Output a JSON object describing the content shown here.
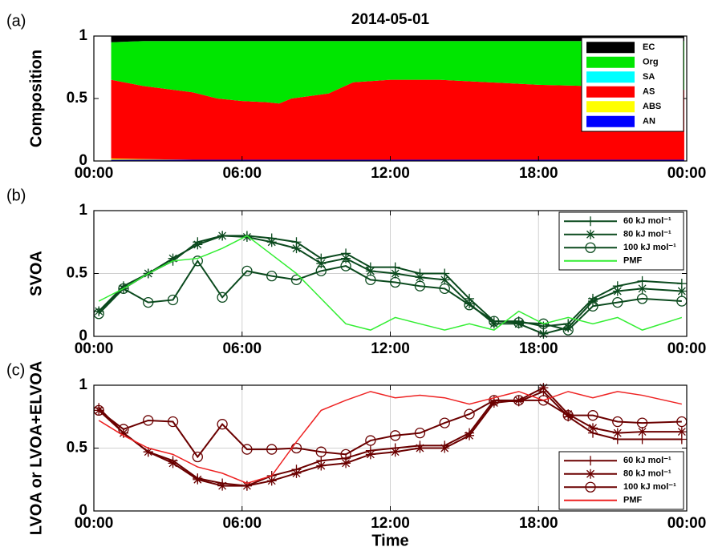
{
  "chart_data": [
    {
      "type": "area",
      "panel_label": "(a)",
      "title": "2014-05-01",
      "ylabel": "Composition",
      "x": [
        0.7,
        2,
        4,
        5,
        6,
        7,
        7.5,
        8,
        9.5,
        10.5,
        12,
        14,
        16,
        18,
        20,
        22,
        23.9
      ],
      "series": [
        {
          "name": "EC",
          "color": "#000000",
          "values": [
            0.05,
            0.04,
            0.04,
            0.04,
            0.04,
            0.04,
            0.04,
            0.04,
            0.04,
            0.04,
            0.04,
            0.04,
            0.04,
            0.04,
            0.04,
            0.04,
            0.04
          ]
        },
        {
          "name": "Org",
          "color": "#00e600",
          "values": [
            0.3,
            0.36,
            0.41,
            0.46,
            0.48,
            0.49,
            0.5,
            0.46,
            0.42,
            0.33,
            0.31,
            0.31,
            0.33,
            0.35,
            0.36,
            0.37,
            0.39
          ]
        },
        {
          "name": "SA",
          "color": "#00ffff",
          "values": [
            0,
            0,
            0,
            0,
            0,
            0,
            0,
            0,
            0,
            0,
            0,
            0,
            0,
            0,
            0,
            0,
            0
          ]
        },
        {
          "name": "AS",
          "color": "#ff0000",
          "values": [
            0.63,
            0.585,
            0.54,
            0.49,
            0.47,
            0.46,
            0.45,
            0.49,
            0.53,
            0.62,
            0.64,
            0.64,
            0.62,
            0.6,
            0.59,
            0.58,
            0.56
          ]
        },
        {
          "name": "ABS",
          "color": "#ffff00",
          "values": [
            0.01,
            0.005,
            0,
            0,
            0,
            0,
            0,
            0,
            0,
            0,
            0,
            0,
            0,
            0,
            0,
            0,
            0
          ]
        },
        {
          "name": "AN",
          "color": "#0000ff",
          "values": [
            0.01,
            0.01,
            0.01,
            0.01,
            0.01,
            0.01,
            0.01,
            0.01,
            0.01,
            0.01,
            0.01,
            0.01,
            0.01,
            0.01,
            0.01,
            0.01,
            0.01
          ]
        }
      ],
      "xlim": [
        0,
        24
      ],
      "xticks": [
        {
          "value": 0,
          "label": "00:00"
        },
        {
          "value": 6,
          "label": "06:00"
        },
        {
          "value": 12,
          "label": "12:00"
        },
        {
          "value": 18,
          "label": "18:00"
        },
        {
          "value": 24,
          "label": "00:00"
        }
      ],
      "ylim": [
        0,
        1
      ],
      "yticks": [
        0,
        0.5,
        1
      ],
      "grid": false,
      "legend": "upper right"
    },
    {
      "type": "line",
      "panel_label": "(b)",
      "ylabel": "SVOA",
      "x": [
        0.2,
        1.2,
        2.2,
        3.2,
        4.2,
        5.2,
        6.2,
        7.2,
        8.2,
        9.2,
        10.2,
        11.2,
        12.2,
        13.2,
        14.2,
        15.2,
        16.2,
        17.2,
        18.2,
        19.2,
        20.2,
        21.2,
        22.2,
        23.8
      ],
      "series": [
        {
          "name": "60 kJ mol⁻¹",
          "color": "#0b4a1e",
          "marker": "+",
          "values": [
            0.2,
            0.4,
            0.5,
            0.6,
            0.75,
            0.8,
            0.8,
            0.78,
            0.75,
            0.62,
            0.66,
            0.55,
            0.55,
            0.5,
            0.5,
            0.3,
            0.12,
            0.12,
            0.08,
            0.1,
            0.3,
            0.4,
            0.44,
            0.42
          ]
        },
        {
          "name": "80 kJ mol⁻¹",
          "color": "#0b4a1e",
          "marker": "*",
          "values": [
            0.2,
            0.38,
            0.5,
            0.62,
            0.73,
            0.8,
            0.79,
            0.75,
            0.7,
            0.58,
            0.62,
            0.52,
            0.5,
            0.47,
            0.45,
            0.26,
            0.1,
            0.1,
            0.02,
            0.07,
            0.28,
            0.36,
            0.38,
            0.36
          ]
        },
        {
          "name": "100 kJ mol⁻¹",
          "color": "#0b4a1e",
          "marker": "o",
          "values": [
            0.18,
            0.38,
            0.27,
            0.29,
            0.6,
            0.31,
            0.52,
            0.48,
            0.45,
            0.52,
            0.56,
            0.45,
            0.43,
            0.4,
            0.38,
            0.25,
            0.12,
            0.11,
            0.1,
            0.05,
            0.24,
            0.27,
            0.3,
            0.28
          ]
        },
        {
          "name": "PMF",
          "color": "#33ee33",
          "marker": "none",
          "values": [
            0.28,
            0.38,
            0.5,
            0.6,
            0.62,
            0.7,
            0.8,
            0.65,
            0.5,
            0.3,
            0.1,
            0.05,
            0.15,
            0.1,
            0.05,
            0.1,
            0.05,
            0.2,
            0.1,
            0.15,
            0.1,
            0.15,
            0.05,
            0.15
          ]
        }
      ],
      "xlim": [
        0,
        24
      ],
      "xticks": [
        {
          "value": 0,
          "label": "00:00"
        },
        {
          "value": 6,
          "label": "06:00"
        },
        {
          "value": 12,
          "label": "12:00"
        },
        {
          "value": 18,
          "label": "18:00"
        },
        {
          "value": 24,
          "label": "00:00"
        }
      ],
      "ylim": [
        0,
        1
      ],
      "yticks": [
        0,
        0.5,
        1
      ],
      "grid": true,
      "legend": "upper right"
    },
    {
      "type": "line",
      "panel_label": "(c)",
      "ylabel": "LVOA or LVOA+ELVOA",
      "xlabel": "Time",
      "x": [
        0.2,
        1.2,
        2.2,
        3.2,
        4.2,
        5.2,
        6.2,
        7.2,
        8.2,
        9.2,
        10.2,
        11.2,
        12.2,
        13.2,
        14.2,
        15.2,
        16.2,
        17.2,
        18.2,
        19.2,
        20.2,
        21.2,
        22.2,
        23.8
      ],
      "series": [
        {
          "name": "60 kJ mol⁻¹",
          "color": "#6b0000",
          "marker": "+",
          "values": [
            0.82,
            0.62,
            0.47,
            0.4,
            0.26,
            0.22,
            0.2,
            0.28,
            0.33,
            0.4,
            0.42,
            0.48,
            0.5,
            0.52,
            0.52,
            0.62,
            0.88,
            0.87,
            0.95,
            0.75,
            0.62,
            0.57,
            0.57,
            0.57
          ]
        },
        {
          "name": "80 kJ mol⁻¹",
          "color": "#6b0000",
          "marker": "*",
          "values": [
            0.8,
            0.62,
            0.47,
            0.38,
            0.25,
            0.2,
            0.2,
            0.24,
            0.3,
            0.36,
            0.38,
            0.45,
            0.47,
            0.5,
            0.5,
            0.6,
            0.86,
            0.88,
            0.98,
            0.77,
            0.66,
            0.62,
            0.63,
            0.63
          ]
        },
        {
          "name": "100 kJ mol⁻¹",
          "color": "#6b0000",
          "marker": "o",
          "values": [
            0.8,
            0.65,
            0.72,
            0.71,
            0.43,
            0.69,
            0.49,
            0.49,
            0.5,
            0.47,
            0.45,
            0.56,
            0.6,
            0.62,
            0.7,
            0.77,
            0.88,
            0.88,
            0.88,
            0.76,
            0.76,
            0.71,
            0.7,
            0.71
          ]
        },
        {
          "name": "PMF",
          "color": "#ee2222",
          "marker": "none",
          "values": [
            0.72,
            0.6,
            0.5,
            0.45,
            0.35,
            0.3,
            0.22,
            0.28,
            0.55,
            0.8,
            0.88,
            0.95,
            0.9,
            0.92,
            0.9,
            0.85,
            0.9,
            0.95,
            0.88,
            0.95,
            0.9,
            0.95,
            0.92,
            0.85
          ]
        }
      ],
      "xlim": [
        0,
        24
      ],
      "xticks": [
        {
          "value": 0,
          "label": "00:00"
        },
        {
          "value": 6,
          "label": "06:00"
        },
        {
          "value": 12,
          "label": "12:00"
        },
        {
          "value": 18,
          "label": "18:00"
        },
        {
          "value": 24,
          "label": "00:00"
        }
      ],
      "ylim": [
        0,
        1
      ],
      "yticks": [
        0,
        0.5,
        1
      ],
      "grid": true,
      "legend": "lower right"
    }
  ]
}
